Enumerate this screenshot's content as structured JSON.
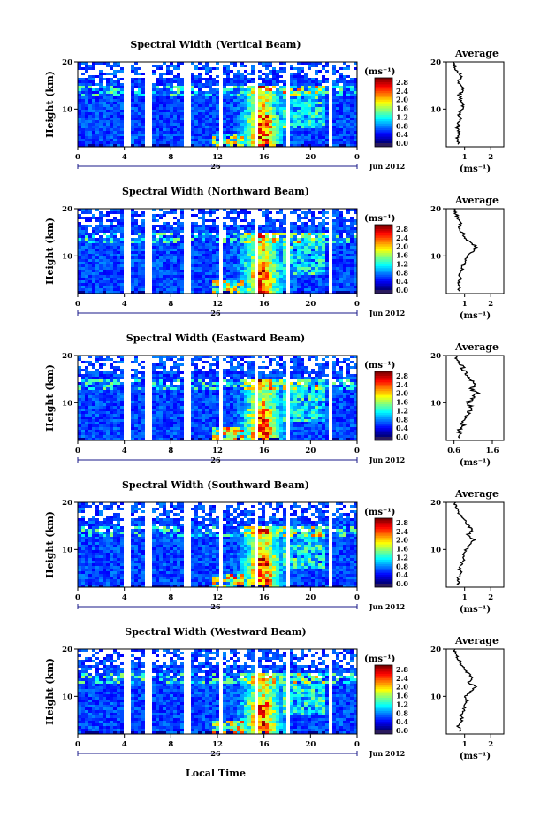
{
  "figure": {
    "xlabel": "Local Time",
    "date_label": "Jun 2012",
    "day_label": "26"
  },
  "chart_data": [
    {
      "type": "heatmap",
      "title": "Spectral Width (Vertical Beam)",
      "ylabel": "Height (km)",
      "ylim": [
        2,
        20
      ],
      "yticks": [
        "20",
        "10"
      ],
      "xlim": [
        0,
        24
      ],
      "xticks": [
        "0",
        "4",
        "8",
        "12",
        "16",
        "20",
        "0"
      ],
      "colorbar": {
        "unit": "(ms⁻¹)",
        "ticks": [
          "2.8",
          "2.4",
          "2.0",
          "1.6",
          "1.2",
          "0.8",
          "0.4",
          "0.0"
        ],
        "range": [
          0,
          3.0
        ]
      },
      "data_gaps_hours": [
        [
          3.7,
          4.3
        ],
        [
          5.6,
          6.2
        ],
        [
          9.1,
          9.7
        ],
        [
          12.0,
          12.4
        ],
        [
          14.9,
          15.4
        ],
        [
          17.8,
          18.2
        ],
        [
          21.3,
          21.8
        ]
      ],
      "profile": {
        "title": "Average",
        "xticks": [
          "1",
          "2"
        ],
        "xlim": [
          0.3,
          2.5
        ],
        "xlabel": "(ms⁻¹)",
        "heights": [
          3,
          4,
          5,
          6,
          7,
          8,
          9,
          10,
          11,
          12,
          13,
          14,
          15,
          16,
          17,
          18,
          19,
          20
        ],
        "values": [
          0.75,
          0.72,
          0.8,
          0.72,
          0.78,
          0.85,
          0.78,
          0.9,
          0.95,
          0.85,
          0.8,
          0.95,
          0.85,
          0.75,
          0.9,
          0.7,
          0.6,
          0.55
        ]
      }
    },
    {
      "type": "heatmap",
      "title": "Spectral Width (Northward Beam)",
      "ylabel": "Height (km)",
      "ylim": [
        2,
        20
      ],
      "yticks": [
        "20",
        "10"
      ],
      "xlim": [
        0,
        24
      ],
      "xticks": [
        "0",
        "4",
        "8",
        "12",
        "16",
        "20",
        "0"
      ],
      "colorbar": {
        "unit": "(ms⁻¹)",
        "ticks": [
          "2.8",
          "2.4",
          "2.0",
          "1.6",
          "1.2",
          "0.8",
          "0.4",
          "0.0"
        ],
        "range": [
          0,
          3.0
        ]
      },
      "data_gaps_hours": [
        [
          3.7,
          4.3
        ],
        [
          5.6,
          6.2
        ],
        [
          9.1,
          9.7
        ],
        [
          12.0,
          12.4
        ],
        [
          14.9,
          15.4
        ],
        [
          17.8,
          18.2
        ],
        [
          21.3,
          21.8
        ]
      ],
      "profile": {
        "title": "Average",
        "xticks": [
          "1",
          "2"
        ],
        "xlim": [
          0.3,
          2.5
        ],
        "xlabel": "(ms⁻¹)",
        "heights": [
          3,
          4,
          5,
          6,
          7,
          8,
          9,
          10,
          11,
          12,
          13,
          14,
          15,
          16,
          17,
          18,
          19,
          20
        ],
        "values": [
          0.8,
          0.75,
          0.85,
          0.8,
          0.9,
          0.95,
          1.0,
          1.1,
          1.3,
          1.45,
          1.2,
          1.0,
          0.9,
          0.8,
          0.85,
          0.75,
          0.65,
          0.6
        ]
      }
    },
    {
      "type": "heatmap",
      "title": "Spectral Width (Eastward Beam)",
      "ylabel": "Height (km)",
      "ylim": [
        2,
        20
      ],
      "yticks": [
        "20",
        "10"
      ],
      "xlim": [
        0,
        24
      ],
      "xticks": [
        "0",
        "4",
        "8",
        "12",
        "16",
        "20",
        "0"
      ],
      "colorbar": {
        "unit": "(ms⁻¹)",
        "ticks": [
          "2.8",
          "2.4",
          "2.0",
          "1.6",
          "1.2",
          "0.8",
          "0.4",
          "0.0"
        ],
        "range": [
          0,
          3.0
        ]
      },
      "data_gaps_hours": [
        [
          3.7,
          4.3
        ],
        [
          5.6,
          6.2
        ],
        [
          9.1,
          9.7
        ],
        [
          12.0,
          12.4
        ],
        [
          14.9,
          15.4
        ],
        [
          17.8,
          18.2
        ],
        [
          21.3,
          21.8
        ]
      ],
      "profile": {
        "title": "Average",
        "xticks": [
          "0.6",
          "1.6"
        ],
        "xlim": [
          0.4,
          1.9
        ],
        "xlabel": "(ms⁻¹)",
        "heights": [
          3,
          4,
          5,
          6,
          7,
          8,
          9,
          10,
          11,
          12,
          13,
          14,
          15,
          16,
          17,
          18,
          19,
          20
        ],
        "values": [
          0.75,
          0.72,
          0.85,
          0.8,
          0.88,
          1.0,
          1.05,
          0.95,
          1.1,
          1.2,
          1.05,
          1.15,
          1.0,
          0.95,
          0.85,
          0.8,
          0.7,
          0.65
        ]
      }
    },
    {
      "type": "heatmap",
      "title": "Spectral Width (Southward Beam)",
      "ylabel": "Height (km)",
      "ylim": [
        2,
        20
      ],
      "yticks": [
        "20",
        "10"
      ],
      "xlim": [
        0,
        24
      ],
      "xticks": [
        "0",
        "4",
        "8",
        "12",
        "16",
        "20",
        "0"
      ],
      "colorbar": {
        "unit": "(ms⁻¹)",
        "ticks": [
          "2.8",
          "2.4",
          "2.0",
          "1.6",
          "1.2",
          "0.8",
          "0.4",
          "0.0"
        ],
        "range": [
          0,
          3.0
        ]
      },
      "data_gaps_hours": [
        [
          3.7,
          4.3
        ],
        [
          5.6,
          6.2
        ],
        [
          9.1,
          9.7
        ],
        [
          12.0,
          12.4
        ],
        [
          14.9,
          15.4
        ],
        [
          17.8,
          18.2
        ],
        [
          21.3,
          21.8
        ]
      ],
      "profile": {
        "title": "Average",
        "xticks": [
          "1",
          "2"
        ],
        "xlim": [
          0.3,
          2.5
        ],
        "xlabel": "(ms⁻¹)",
        "heights": [
          3,
          4,
          5,
          6,
          7,
          8,
          9,
          10,
          11,
          12,
          13,
          14,
          15,
          16,
          17,
          18,
          19,
          20
        ],
        "values": [
          0.78,
          0.75,
          0.85,
          0.8,
          0.9,
          1.0,
          0.95,
          1.05,
          1.2,
          1.35,
          1.1,
          1.3,
          1.15,
          1.0,
          0.9,
          0.75,
          0.65,
          0.6
        ]
      }
    },
    {
      "type": "heatmap",
      "title": "Spectral Width (Westward Beam)",
      "ylabel": "Height (km)",
      "ylim": [
        2,
        20
      ],
      "yticks": [
        "20",
        "10"
      ],
      "xlim": [
        0,
        24
      ],
      "xticks": [
        "0",
        "4",
        "8",
        "12",
        "16",
        "20",
        "0"
      ],
      "colorbar": {
        "unit": "(ms⁻¹)",
        "ticks": [
          "2.8",
          "2.4",
          "2.0",
          "1.6",
          "1.2",
          "0.8",
          "0.4",
          "0.0"
        ],
        "range": [
          0,
          3.0
        ]
      },
      "data_gaps_hours": [
        [
          3.7,
          4.3
        ],
        [
          5.6,
          6.2
        ],
        [
          9.1,
          9.7
        ],
        [
          12.0,
          12.4
        ],
        [
          14.9,
          15.4
        ],
        [
          17.8,
          18.2
        ],
        [
          21.3,
          21.8
        ]
      ],
      "profile": {
        "title": "Average",
        "xticks": [
          "1",
          "2"
        ],
        "xlim": [
          0.3,
          2.5
        ],
        "xlabel": "(ms⁻¹)",
        "heights": [
          3,
          4,
          5,
          6,
          7,
          8,
          9,
          10,
          11,
          12,
          13,
          14,
          15,
          16,
          17,
          18,
          19,
          20
        ],
        "values": [
          0.8,
          0.75,
          0.9,
          0.85,
          0.95,
          1.0,
          1.1,
          1.05,
          1.25,
          1.4,
          1.15,
          1.3,
          1.1,
          0.95,
          0.85,
          0.75,
          0.65,
          0.6
        ]
      }
    }
  ]
}
